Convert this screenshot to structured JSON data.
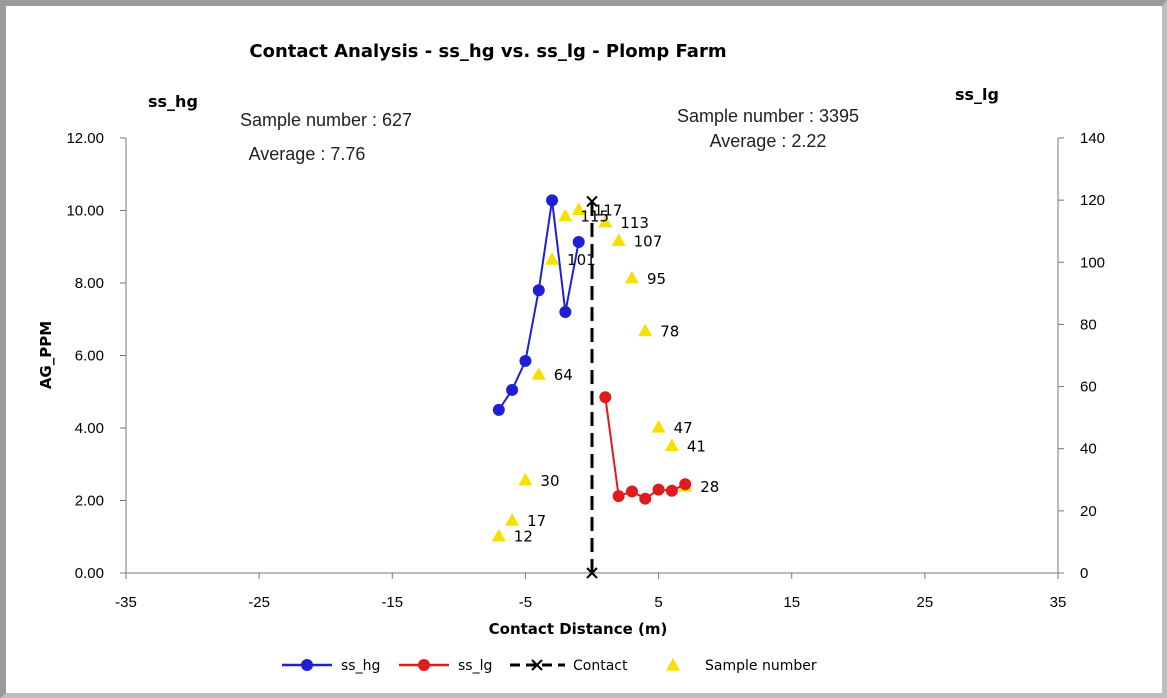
{
  "chart_data": {
    "type": "line",
    "title": "Contact Analysis - ss_hg vs. ss_lg - Plomp Farm",
    "xlabel": "Contact Distance (m)",
    "ylabel": "AG_PPM",
    "xlim": [
      -35,
      35
    ],
    "x_ticks": [
      "-35",
      "-25",
      "-15",
      "-5",
      "5",
      "15",
      "25",
      "35"
    ],
    "ylim": [
      0,
      12
    ],
    "y_ticks": [
      "0.00",
      "2.00",
      "4.00",
      "6.00",
      "8.00",
      "10.00",
      "12.00"
    ],
    "y2lim": [
      0,
      140
    ],
    "y2_ticks": [
      "0",
      "20",
      "40",
      "60",
      "80",
      "100",
      "120",
      "140"
    ],
    "left_series_title": "ss_hg",
    "right_series_title": "ss_lg",
    "left_stats": [
      "Sample number : 627",
      "Average : 7.76"
    ],
    "right_stats": [
      "Sample number : 3395",
      "Average : 2.22"
    ],
    "grid": false,
    "legend_position": "bottom",
    "series": [
      {
        "name": "ss_hg",
        "axis": "left",
        "color": "#1f1fd6",
        "marker": "circle",
        "points": [
          [
            -7,
            4.5
          ],
          [
            -6,
            5.05
          ],
          [
            -5,
            5.85
          ],
          [
            -4,
            7.8
          ],
          [
            -3,
            10.28
          ],
          [
            -2,
            7.2
          ],
          [
            -1,
            9.13
          ]
        ]
      },
      {
        "name": "ss_lg",
        "axis": "left",
        "color": "#e01b1b",
        "marker": "circle",
        "points": [
          [
            1,
            4.85
          ],
          [
            2,
            2.12
          ],
          [
            3,
            2.25
          ],
          [
            4,
            2.05
          ],
          [
            5,
            2.3
          ],
          [
            6,
            2.27
          ],
          [
            7,
            2.45
          ]
        ]
      },
      {
        "name": "Contact",
        "axis": "left",
        "color": "#000000",
        "marker": "x",
        "line": "dashed",
        "points": [
          [
            0,
            0
          ],
          [
            0,
            10.25
          ]
        ]
      },
      {
        "name": "Sample number",
        "axis": "right",
        "color": "#f5e000",
        "marker": "triangle",
        "line": "none",
        "points": [
          [
            -7,
            12,
            "12"
          ],
          [
            -6,
            17,
            "17"
          ],
          [
            -5,
            30,
            "30"
          ],
          [
            -4,
            64,
            "64"
          ],
          [
            -3,
            101,
            "101"
          ],
          [
            -2,
            115,
            "115"
          ],
          [
            -1,
            117,
            "117"
          ],
          [
            1,
            113,
            "113"
          ],
          [
            2,
            107,
            "107"
          ],
          [
            3,
            95,
            "95"
          ],
          [
            4,
            78,
            "78"
          ],
          [
            5,
            47,
            "47"
          ],
          [
            6,
            41,
            "41"
          ],
          [
            7,
            28,
            "28"
          ]
        ]
      }
    ]
  }
}
